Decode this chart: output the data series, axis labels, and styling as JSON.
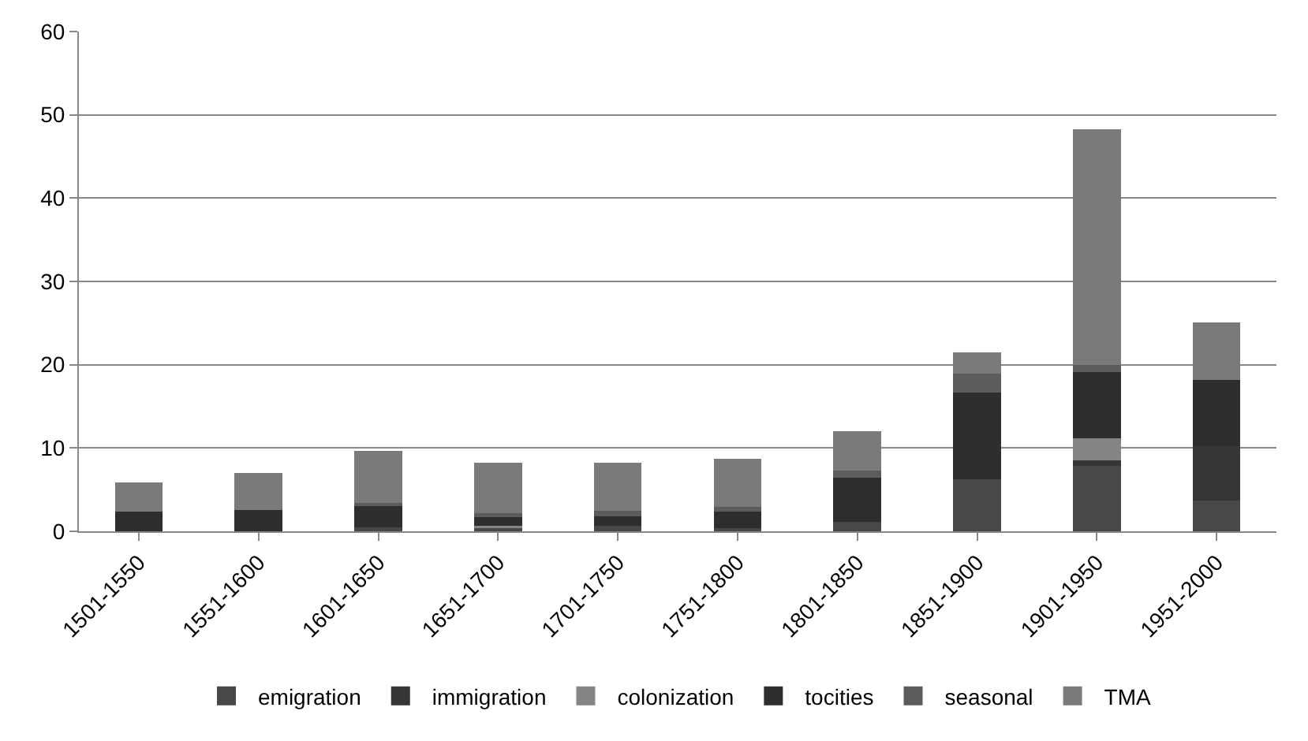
{
  "chart_data": {
    "type": "bar",
    "stacked": true,
    "categories": [
      "1501-1550",
      "1551-1600",
      "1601-1650",
      "1651-1700",
      "1701-1750",
      "1751-1800",
      "1801-1850",
      "1851-1900",
      "1901-1950",
      "1951-2000"
    ],
    "series": [
      {
        "name": "emigration",
        "color": "#484848",
        "values": [
          0,
          0,
          0.5,
          0.5,
          0.7,
          0.4,
          1.1,
          6.2,
          7.9,
          3.7
        ]
      },
      {
        "name": "immigration",
        "color": "#363636",
        "values": [
          0,
          0,
          0,
          0,
          0,
          0,
          0,
          0,
          0.6,
          6.5
        ]
      },
      {
        "name": "colonization",
        "color": "#858585",
        "values": [
          0,
          0,
          0,
          0.2,
          0,
          0,
          0,
          0,
          2.7,
          0
        ]
      },
      {
        "name": "tocities",
        "color": "#2e2e2e",
        "values": [
          2.4,
          2.6,
          2.7,
          1.0,
          1.1,
          2.0,
          5.3,
          10.5,
          7.9,
          8.0
        ]
      },
      {
        "name": "seasonal",
        "color": "#5c5c5c",
        "values": [
          0,
          0,
          0.2,
          0.5,
          0.7,
          0.5,
          0.9,
          2.2,
          0.9,
          0
        ]
      },
      {
        "name": "TMA",
        "color": "#7a7a7a",
        "values": [
          3.5,
          4.4,
          6.3,
          6.0,
          5.7,
          5.8,
          4.7,
          2.6,
          28.3,
          6.9
        ]
      }
    ],
    "ylim": [
      0,
      60
    ],
    "yticks": [
      0,
      10,
      20,
      30,
      40,
      50,
      60
    ],
    "grid": "y",
    "legend": "bottom"
  }
}
